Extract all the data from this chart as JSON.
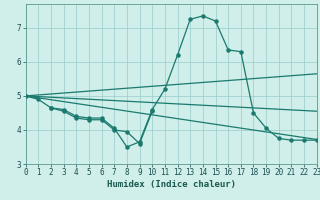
{
  "xlabel": "Humidex (Indice chaleur)",
  "bg_color": "#d0eeea",
  "line_color": "#1a7a6e",
  "grid_color": "#99cccc",
  "xlim": [
    0,
    23
  ],
  "ylim": [
    3.0,
    7.7
  ],
  "yticks": [
    3,
    4,
    5,
    6,
    7
  ],
  "xticks": [
    0,
    1,
    2,
    3,
    4,
    5,
    6,
    7,
    8,
    9,
    10,
    11,
    12,
    13,
    14,
    15,
    16,
    17,
    18,
    19,
    20,
    21,
    22,
    23
  ],
  "curve1_x": [
    0,
    1,
    2,
    3,
    4,
    5,
    6,
    7,
    8,
    9,
    10,
    11,
    12,
    13,
    14,
    15,
    16,
    17,
    18,
    19,
    20,
    21,
    22,
    23
  ],
  "curve1_y": [
    5.0,
    4.9,
    4.65,
    4.6,
    4.4,
    4.35,
    4.35,
    4.05,
    3.5,
    3.65,
    4.6,
    5.2,
    6.2,
    7.25,
    7.35,
    7.2,
    6.35,
    6.3,
    4.5,
    4.05,
    3.75,
    3.7,
    3.7,
    3.7
  ],
  "curve2_x": [
    2,
    3,
    4,
    5,
    6,
    7,
    8,
    9,
    10
  ],
  "curve2_y": [
    4.65,
    4.55,
    4.35,
    4.3,
    4.3,
    4.0,
    3.95,
    3.6,
    4.55
  ],
  "line1_x": [
    0,
    23
  ],
  "line1_y": [
    5.0,
    5.65
  ],
  "line2_x": [
    0,
    23
  ],
  "line2_y": [
    5.0,
    4.55
  ],
  "line3_x": [
    0,
    23
  ],
  "line3_y": [
    5.0,
    3.72
  ]
}
